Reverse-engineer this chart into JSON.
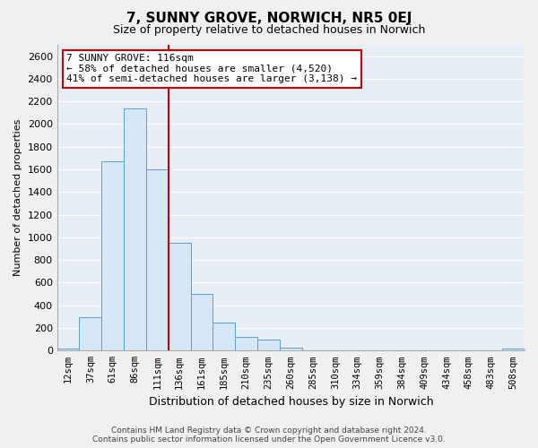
{
  "title": "7, SUNNY GROVE, NORWICH, NR5 0EJ",
  "subtitle": "Size of property relative to detached houses in Norwich",
  "xlabel": "Distribution of detached houses by size in Norwich",
  "ylabel": "Number of detached properties",
  "categories": [
    "12sqm",
    "37sqm",
    "61sqm",
    "86sqm",
    "111sqm",
    "136sqm",
    "161sqm",
    "185sqm",
    "210sqm",
    "235sqm",
    "260sqm",
    "285sqm",
    "310sqm",
    "334sqm",
    "359sqm",
    "384sqm",
    "409sqm",
    "434sqm",
    "458sqm",
    "483sqm",
    "508sqm"
  ],
  "values": [
    20,
    295,
    1670,
    2140,
    1600,
    955,
    500,
    245,
    120,
    95,
    30,
    5,
    0,
    0,
    0,
    0,
    0,
    0,
    0,
    0,
    20
  ],
  "bar_facecolor": "#d6e8f7",
  "bar_edgecolor": "#5a9fd4",
  "red_line_index": 4,
  "annotation_box_text": "7 SUNNY GROVE: 116sqm\n← 58% of detached houses are smaller (4,520)\n41% of semi-detached houses are larger (3,138) →",
  "ylim": [
    0,
    2700
  ],
  "yticks": [
    0,
    200,
    400,
    600,
    800,
    1000,
    1200,
    1400,
    1600,
    1800,
    2000,
    2200,
    2400,
    2600
  ],
  "footer_line1": "Contains HM Land Registry data © Crown copyright and database right 2024.",
  "footer_line2": "Contains public sector information licensed under the Open Government Licence v3.0.",
  "background_color": "#f0f0f0",
  "plot_bg_color": "#e8eef5",
  "grid_color": "#ffffff",
  "annotation_box_color": "#ffffff",
  "annotation_box_edge_color": "#cc0000",
  "red_line_color": "#cc0000",
  "title_fontsize": 11,
  "subtitle_fontsize": 9,
  "ylabel_fontsize": 8,
  "xlabel_fontsize": 9,
  "tick_fontsize": 7.5,
  "ytick_fontsize": 8,
  "footer_fontsize": 6.5,
  "ann_fontsize": 8
}
